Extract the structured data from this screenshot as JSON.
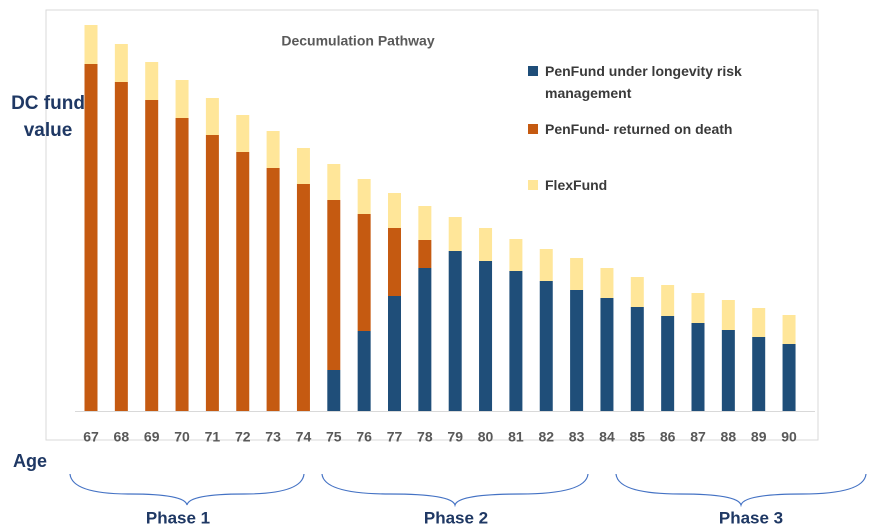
{
  "chart_data": {
    "type": "bar",
    "stacked": true,
    "title": "Decumulation Pathway",
    "ylabel": "DC fund value",
    "xlabel": "Age",
    "phases": [
      "Phase 1",
      "Phase 2",
      "Phase 3"
    ],
    "categories": [
      "67",
      "68",
      "69",
      "70",
      "71",
      "72",
      "73",
      "74",
      "75",
      "76",
      "77",
      "78",
      "79",
      "80",
      "81",
      "82",
      "83",
      "84",
      "85",
      "86",
      "87",
      "88",
      "89",
      "90"
    ],
    "series": [
      {
        "name": "PenFund under longevity risk management",
        "color": "#1f4e79",
        "values": [
          0,
          0,
          0,
          0,
          0,
          0,
          0,
          0,
          41,
          80,
          115,
          143,
          160,
          150,
          140,
          130,
          121,
          113,
          104,
          95,
          88,
          81,
          74,
          67
        ]
      },
      {
        "name": "PenFund- returned on death",
        "color": "#c55a11",
        "values": [
          347,
          329,
          311,
          293,
          276,
          259,
          243,
          227,
          170,
          117,
          68,
          28,
          0,
          0,
          0,
          0,
          0,
          0,
          0,
          0,
          0,
          0,
          0,
          0
        ]
      },
      {
        "name": "FlexFund",
        "color": "#ffe699",
        "values": [
          39,
          38,
          38,
          38,
          37,
          37,
          37,
          36,
          36,
          35,
          35,
          34,
          34,
          33,
          32,
          32,
          32,
          30,
          30,
          31,
          30,
          30,
          29,
          29
        ]
      }
    ],
    "ylim": [
      0,
      400
    ]
  }
}
